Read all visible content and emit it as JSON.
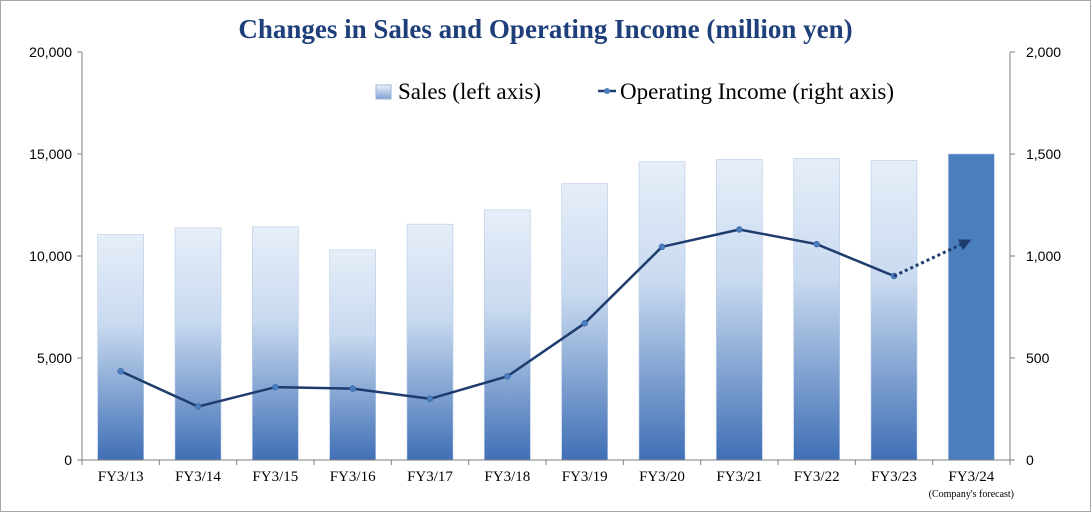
{
  "colors": {
    "title": "#1f3f7a",
    "bar_top": "#e6eef8",
    "bar_bottom": "#3f6fb5",
    "bar_forecast": "#4a7ebf",
    "line": "#1f3c6e",
    "marker": "#4a7ebf",
    "axis": "#7f7f7f"
  },
  "chart_data": {
    "type": "bar",
    "title": "Changes in Sales and Operating Income (million yen)",
    "categories": [
      "FY3/13",
      "FY3/14",
      "FY3/15",
      "FY3/16",
      "FY3/17",
      "FY3/18",
      "FY3/19",
      "FY3/20",
      "FY3/21",
      "FY3/22",
      "FY3/23",
      "FY3/24"
    ],
    "category_notes": [
      "",
      "",
      "",
      "",
      "",
      "",
      "",
      "",
      "",
      "",
      "",
      "(Company's forecast)"
    ],
    "series": [
      {
        "name": "Sales (left axis)",
        "type": "bar",
        "axis": "left",
        "values": [
          11050,
          11380,
          11430,
          10300,
          11560,
          12260,
          13550,
          14620,
          14730,
          14780,
          14680,
          15000
        ],
        "forecast_index": 11
      },
      {
        "name": "Operating Income (right axis)",
        "type": "line",
        "axis": "right",
        "values": [
          435,
          262,
          357,
          350,
          300,
          410,
          670,
          1045,
          1130,
          1058,
          902,
          1080
        ],
        "forecast_index": 11
      }
    ],
    "left_axis": {
      "min": 0,
      "max": 20000,
      "ticks": [
        "0",
        "5,000",
        "10,000",
        "15,000",
        "20,000"
      ]
    },
    "right_axis": {
      "min": 0,
      "max": 2000,
      "ticks": [
        "0",
        "500",
        "1,000",
        "1,500",
        "2,000"
      ]
    },
    "grid": false,
    "legend_position": "top"
  }
}
